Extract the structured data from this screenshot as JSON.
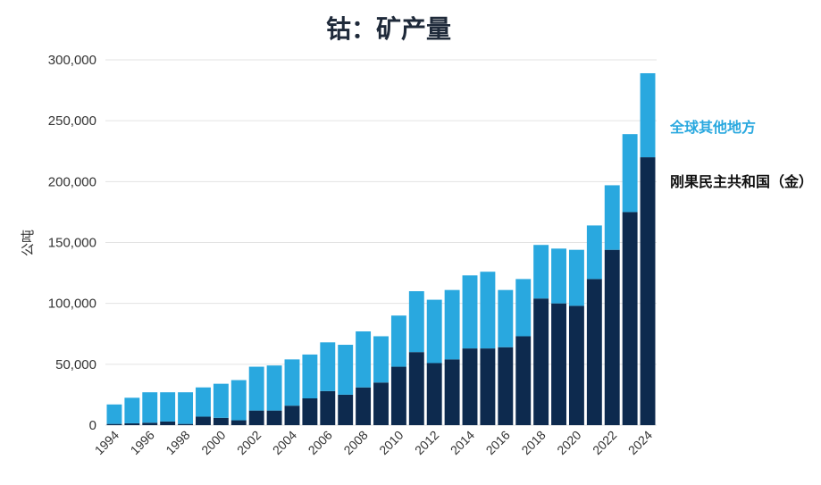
{
  "chart_data": {
    "type": "bar",
    "stacked": true,
    "title": "钴：矿产量",
    "xlabel": "",
    "ylabel": "公吨",
    "ylim": [
      0,
      300000
    ],
    "yticks": [
      0,
      50000,
      100000,
      150000,
      200000,
      250000,
      300000
    ],
    "ytick_labels": [
      "0",
      "50,000",
      "100,000",
      "150,000",
      "200,000",
      "250,000",
      "300,000"
    ],
    "xtick_labels": [
      "1994",
      "1996",
      "1998",
      "2000",
      "2002",
      "2004",
      "2006",
      "2008",
      "2010",
      "2012",
      "2014",
      "2016",
      "2018",
      "2020",
      "2022",
      "2024"
    ],
    "categories": [
      "1994",
      "1995",
      "1996",
      "1997",
      "1998",
      "1999",
      "2000",
      "2001",
      "2002",
      "2003",
      "2004",
      "2005",
      "2006",
      "2007",
      "2008",
      "2009",
      "2010",
      "2011",
      "2012",
      "2013",
      "2014",
      "2015",
      "2016",
      "2017",
      "2018",
      "2019",
      "2020",
      "2021",
      "2022",
      "2023",
      "2024"
    ],
    "grid": true,
    "legend_placement": "right",
    "series": [
      {
        "name": "刚果民主共和国（金）",
        "color": "#0d2a4e",
        "values": [
          1000,
          1500,
          2000,
          3000,
          1000,
          7000,
          6000,
          4000,
          12000,
          12000,
          16000,
          22000,
          28000,
          25000,
          31000,
          35000,
          48000,
          60000,
          51000,
          54000,
          63000,
          63000,
          64000,
          73000,
          104000,
          100000,
          98000,
          120000,
          144000,
          175000,
          220000
        ]
      },
      {
        "name": "全球其他地方",
        "color": "#29a8df",
        "values": [
          16000,
          21000,
          25000,
          24000,
          26000,
          24000,
          28000,
          33000,
          36000,
          37000,
          38000,
          36000,
          40000,
          41000,
          46000,
          38000,
          42000,
          50000,
          52000,
          57000,
          60000,
          63000,
          47000,
          47000,
          44000,
          45000,
          46000,
          44000,
          53000,
          64000,
          69000
        ]
      }
    ]
  }
}
